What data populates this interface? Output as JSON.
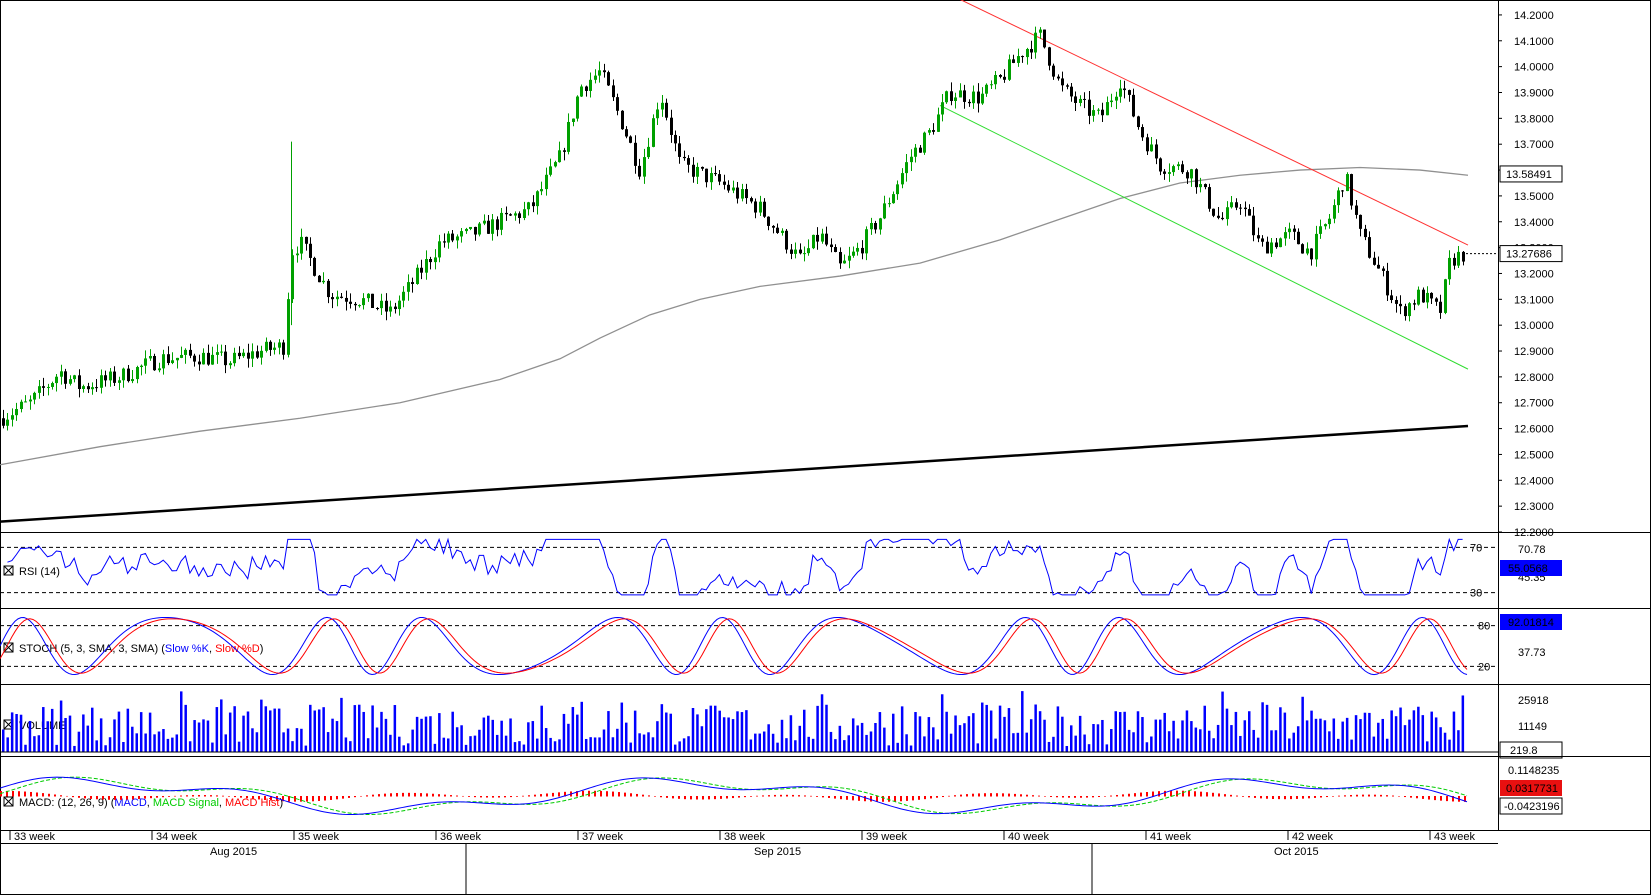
{
  "chart_data": [
    {
      "type": "candlestick",
      "name": "price",
      "ylim": [
        12.2,
        14.25
      ],
      "y_ticks": [
        "14.2000",
        "14.1000",
        "14.0000",
        "13.9000",
        "13.8000",
        "13.7000",
        "13.6000",
        "13.5000",
        "13.4000",
        "13.3000",
        "13.2000",
        "13.1000",
        "13.0000",
        "12.9000",
        "12.8000",
        "12.7000",
        "12.6000",
        "12.5000",
        "12.4000",
        "12.3000",
        "12.2000"
      ],
      "price_badges": [
        "13.58491",
        "13.27686"
      ],
      "price_badge_values": [
        13.58491,
        13.27686
      ],
      "moving_average_200": [
        [
          0,
          12.46
        ],
        [
          100,
          12.53
        ],
        [
          200,
          12.59
        ],
        [
          300,
          12.64
        ],
        [
          400,
          12.7
        ],
        [
          500,
          12.79
        ],
        [
          560,
          12.87
        ],
        [
          600,
          12.95
        ],
        [
          650,
          13.04
        ],
        [
          700,
          13.1
        ],
        [
          760,
          13.15
        ],
        [
          840,
          13.19
        ],
        [
          920,
          13.24
        ],
        [
          1000,
          13.33
        ],
        [
          1060,
          13.41
        ],
        [
          1120,
          13.49
        ],
        [
          1180,
          13.55
        ],
        [
          1240,
          13.58
        ],
        [
          1300,
          13.6
        ],
        [
          1360,
          13.61
        ],
        [
          1420,
          13.6
        ],
        [
          1468,
          13.58
        ]
      ],
      "support_line": [
        [
          0,
          12.24
        ],
        [
          1468,
          12.61
        ]
      ],
      "channel_upper": [
        [
          960,
          14.26
        ],
        [
          1468,
          13.31
        ]
      ],
      "channel_lower": [
        [
          940,
          13.85
        ],
        [
          1468,
          12.83
        ]
      ],
      "closes_anchor": [
        [
          0,
          12.64
        ],
        [
          30,
          12.7
        ],
        [
          60,
          12.82
        ],
        [
          80,
          12.76
        ],
        [
          120,
          12.8
        ],
        [
          160,
          12.87
        ],
        [
          200,
          12.88
        ],
        [
          230,
          12.86
        ],
        [
          260,
          12.9
        ],
        [
          285,
          12.92
        ],
        [
          290,
          13.28
        ],
        [
          300,
          13.32
        ],
        [
          330,
          13.12
        ],
        [
          360,
          13.1
        ],
        [
          390,
          13.05
        ],
        [
          410,
          13.15
        ],
        [
          440,
          13.32
        ],
        [
          470,
          13.35
        ],
        [
          500,
          13.4
        ],
        [
          530,
          13.45
        ],
        [
          560,
          13.65
        ],
        [
          580,
          13.92
        ],
        [
          600,
          13.98
        ],
        [
          620,
          13.8
        ],
        [
          640,
          13.6
        ],
        [
          660,
          13.9
        ],
        [
          680,
          13.62
        ],
        [
          720,
          13.55
        ],
        [
          760,
          13.45
        ],
        [
          800,
          13.25
        ],
        [
          820,
          13.35
        ],
        [
          840,
          13.22
        ],
        [
          860,
          13.3
        ],
        [
          880,
          13.42
        ],
        [
          910,
          13.65
        ],
        [
          930,
          13.75
        ],
        [
          950,
          13.9
        ],
        [
          980,
          13.88
        ],
        [
          1000,
          13.95
        ],
        [
          1020,
          14.05
        ],
        [
          1040,
          14.12
        ],
        [
          1060,
          13.92
        ],
        [
          1080,
          13.85
        ],
        [
          1100,
          13.8
        ],
        [
          1120,
          13.95
        ],
        [
          1140,
          13.75
        ],
        [
          1160,
          13.62
        ],
        [
          1190,
          13.6
        ],
        [
          1220,
          13.4
        ],
        [
          1240,
          13.48
        ],
        [
          1260,
          13.3
        ],
        [
          1290,
          13.35
        ],
        [
          1310,
          13.28
        ],
        [
          1330,
          13.42
        ],
        [
          1345,
          13.58
        ],
        [
          1360,
          13.35
        ],
        [
          1380,
          13.2
        ],
        [
          1400,
          13.05
        ],
        [
          1420,
          13.12
        ],
        [
          1440,
          13.05
        ],
        [
          1450,
          13.25
        ],
        [
          1465,
          13.28
        ]
      ]
    },
    {
      "type": "line",
      "name": "rsi",
      "title": "RSI (14)",
      "ylim": [
        20,
        80
      ],
      "levels": [
        70,
        30
      ],
      "axis_labels": [
        "70.78",
        "45.35"
      ],
      "badge_label": "55.0568",
      "level_labels": [
        "70",
        "30"
      ]
    },
    {
      "type": "line",
      "name": "stoch",
      "title": "STOCH (5, 3, SMA, 3, SMA)",
      "legend": [
        {
          "label": "Slow %K",
          "color": "#0000ff"
        },
        {
          "label": "Slow %D",
          "color": "#ff0000"
        }
      ],
      "ylim": [
        0,
        100
      ],
      "levels": [
        80,
        20
      ],
      "axis_labels": [
        "37.73"
      ],
      "badge_label": "92.01814",
      "level_labels": [
        "80",
        "20"
      ]
    },
    {
      "type": "bar",
      "name": "volume",
      "title": "VOLUME",
      "axis_labels": [
        "25918",
        "11149"
      ],
      "badge_label": "219.8"
    },
    {
      "type": "line",
      "name": "macd",
      "title": "MACD: (12, 26, 9)",
      "legend": [
        {
          "label": "MACD",
          "color": "#0000ff"
        },
        {
          "label": "MACD Signal",
          "color": "#00cc00"
        },
        {
          "label": "MACD Hist",
          "color": "#ff0000"
        }
      ],
      "axis_labels": [
        "0.1148235"
      ],
      "badges": [
        {
          "label": "0.0317731",
          "color": "#e81010"
        },
        {
          "label": "-0.0423196",
          "color": "#ffffff"
        }
      ]
    }
  ],
  "x_axis": {
    "weeks": [
      "33 week",
      "34 week",
      "35 week",
      "36 week",
      "37 week",
      "38 week",
      "39 week",
      "40 week",
      "41 week",
      "42 week",
      "43 week"
    ],
    "months": [
      "Aug 2015",
      "Sep 2015",
      "Oct 2015"
    ]
  },
  "colors": {
    "bull": "#00a000",
    "bear": "#000000",
    "ma": "#909090",
    "channel_upper": "#ff3030",
    "channel_lower": "#30dd30",
    "blue": "#0000ff",
    "red": "#ff0000",
    "badge_blue": "#0000ff"
  }
}
